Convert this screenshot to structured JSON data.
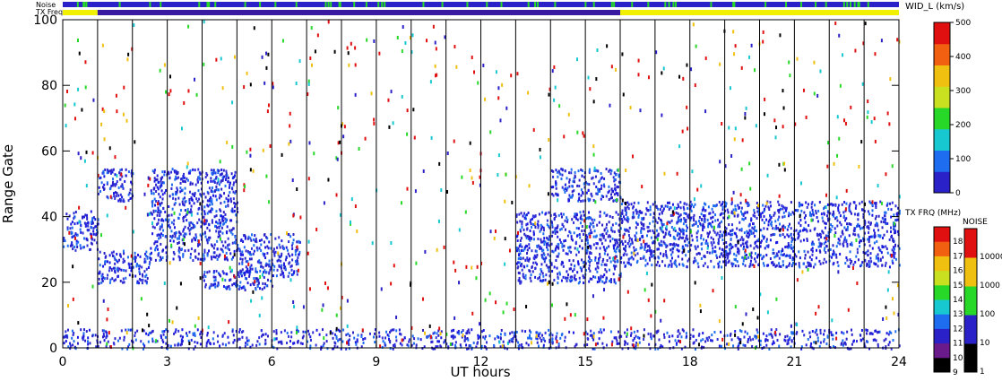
{
  "chart_data": {
    "type": "heatmap",
    "xlabel": "UT hours",
    "ylabel": "Range Gate",
    "xlim": [
      0,
      24
    ],
    "ylim": [
      0,
      100
    ],
    "x_ticks": [
      "0",
      "3",
      "6",
      "9",
      "12",
      "15",
      "18",
      "21",
      "24"
    ],
    "y_ticks": [
      "0",
      "20",
      "40",
      "60",
      "80",
      "100"
    ],
    "grid": "vertical lines every hour",
    "top_bars": {
      "noise_label": "Noise",
      "txfreq_label": "TX Freq",
      "txfreq_segments": [
        {
          "from": 0,
          "to": 1,
          "color": "#f0f000"
        },
        {
          "from": 1,
          "to": 16,
          "color": "#3a1aa0"
        },
        {
          "from": 16,
          "to": 24,
          "color": "#f0f000"
        }
      ]
    },
    "velocity_scale": {
      "title": "WID_L (km/s)",
      "min": 0,
      "max": 500,
      "ticks": [
        "0",
        "100",
        "200",
        "300",
        "400",
        "500"
      ]
    },
    "txfreq_scale": {
      "title": "TX FRQ (MHz)",
      "ticks": [
        "9",
        "10",
        "11",
        "12",
        "13",
        "14",
        "15",
        "16",
        "17",
        "18"
      ],
      "colors": [
        "#000000",
        "#6a1a8a",
        "#2a22c8",
        "#1e6cf0",
        "#18c8d0",
        "#28d828",
        "#c8e020",
        "#f0c010",
        "#f06010",
        "#e01010"
      ]
    },
    "noise_scale": {
      "title": "NOISE",
      "ticks": [
        "1",
        "10",
        "100",
        "1000",
        "10000"
      ],
      "colors": [
        "#000000",
        "#2a22c8",
        "#28d828",
        "#f0c010",
        "#e01010"
      ]
    },
    "main_echo_bands": [
      {
        "t0": 0.0,
        "t1": 1.0,
        "g0": 30,
        "g1": 42
      },
      {
        "t0": 1.0,
        "t1": 2.5,
        "g0": 20,
        "g1": 30
      },
      {
        "t0": 2.5,
        "t1": 5.0,
        "g0": 27,
        "g1": 55
      },
      {
        "t0": 1.0,
        "t1": 2.0,
        "g0": 45,
        "g1": 55
      },
      {
        "t0": 4.0,
        "t1": 6.0,
        "g0": 18,
        "g1": 24
      },
      {
        "t0": 5.0,
        "t1": 6.8,
        "g0": 22,
        "g1": 35
      },
      {
        "t0": 13.0,
        "t1": 16.0,
        "g0": 20,
        "g1": 42
      },
      {
        "t0": 14.0,
        "t1": 16.0,
        "g0": 45,
        "g1": 55
      },
      {
        "t0": 16.0,
        "t1": 24.0,
        "g0": 25,
        "g1": 45
      }
    ]
  }
}
